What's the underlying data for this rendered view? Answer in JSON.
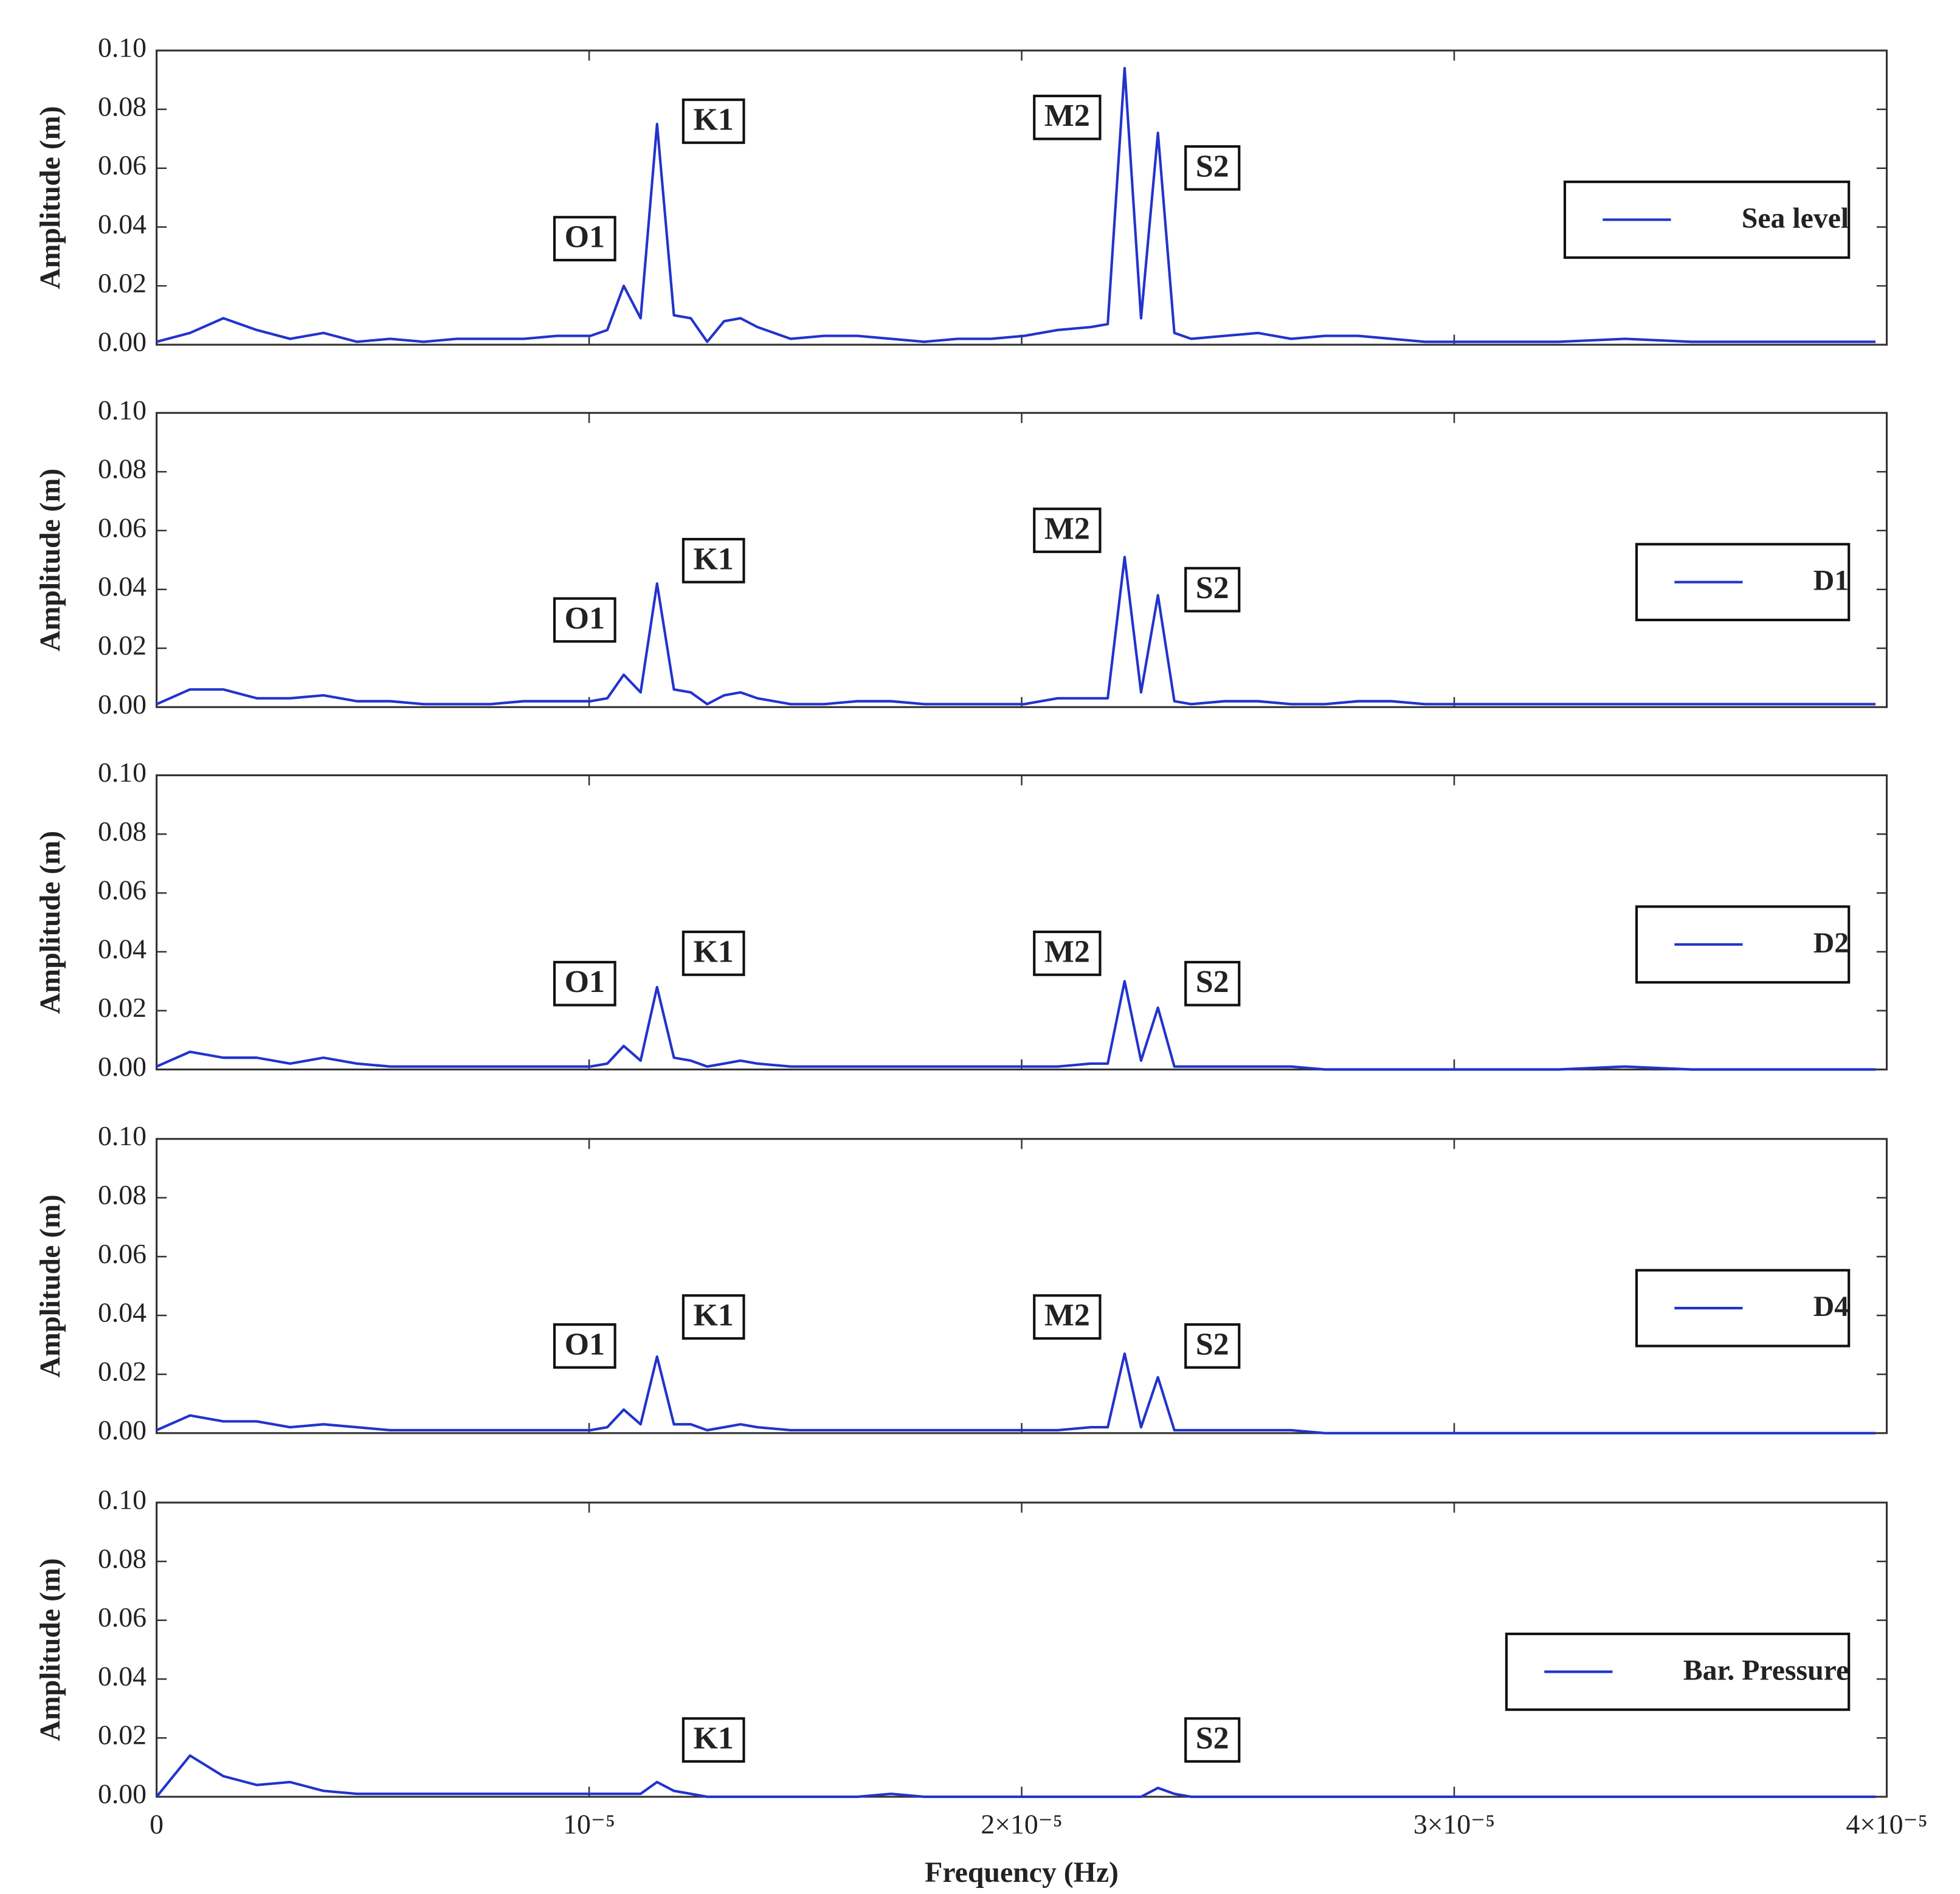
{
  "chart_data": [
    {
      "type": "line",
      "ylabel": "Amplitude (m)",
      "x": [
        0,
        7.72e-07,
        1.543e-06,
        2.315e-06,
        3.086e-06,
        3.858e-06,
        4.63e-06,
        5.401e-06,
        6.173e-06,
        6.944e-06,
        7.716e-06,
        8.488e-06,
        9.259e-06,
        1.003e-05,
        1.042e-05,
        1.08e-05,
        1.119e-05,
        1.157e-05,
        1.196e-05,
        1.235e-05,
        1.273e-05,
        1.312e-05,
        1.35e-05,
        1.389e-05,
        1.466e-05,
        1.543e-05,
        1.62e-05,
        1.698e-05,
        1.775e-05,
        1.852e-05,
        1.929e-05,
        2.006e-05,
        2.083e-05,
        2.16e-05,
        2.199e-05,
        2.238e-05,
        2.276e-05,
        2.315e-05,
        2.353e-05,
        2.392e-05,
        2.469e-05,
        2.546e-05,
        2.623e-05,
        2.701e-05,
        2.778e-05,
        2.855e-05,
        2.932e-05,
        3.009e-05,
        3.086e-05,
        3.241e-05,
        3.395e-05,
        3.549e-05,
        3.704e-05,
        3.858e-05,
        3.974e-05
      ],
      "series": [
        {
          "name": "Sea level",
          "color": "#2233cc",
          "values": [
            0.001,
            0.004,
            0.009,
            0.005,
            0.002,
            0.004,
            0.001,
            0.002,
            0.001,
            0.002,
            0.002,
            0.002,
            0.003,
            0.003,
            0.005,
            0.02,
            0.009,
            0.075,
            0.01,
            0.009,
            0.001,
            0.008,
            0.009,
            0.006,
            0.002,
            0.003,
            0.003,
            0.002,
            0.001,
            0.002,
            0.002,
            0.003,
            0.005,
            0.006,
            0.007,
            0.094,
            0.009,
            0.072,
            0.004,
            0.002,
            0.003,
            0.004,
            0.002,
            0.003,
            0.003,
            0.002,
            0.001,
            0.001,
            0.001,
            0.001,
            0.002,
            0.001,
            0.001,
            0.001,
            0.001
          ]
        }
      ],
      "annotations": [
        "O1",
        "K1",
        "M2",
        "S2"
      ],
      "xlim": [
        0,
        4e-05
      ],
      "ylim": [
        0,
        0.1
      ],
      "yticks": [
        {
          "value": 0,
          "label": "0.00"
        },
        {
          "value": 0.02,
          "label": "0.02"
        },
        {
          "value": 0.04,
          "label": "0.04"
        },
        {
          "value": 0.06,
          "label": "0.06"
        },
        {
          "value": 0.08,
          "label": "0.08"
        },
        {
          "value": 0.1,
          "label": "0.10"
        }
      ],
      "legend": "center right"
    },
    {
      "type": "line",
      "ylabel": "Amplitude (m)",
      "x": [
        0,
        7.72e-07,
        1.543e-06,
        2.315e-06,
        3.086e-06,
        3.858e-06,
        4.63e-06,
        5.401e-06,
        6.173e-06,
        6.944e-06,
        7.716e-06,
        8.488e-06,
        9.259e-06,
        1.003e-05,
        1.042e-05,
        1.08e-05,
        1.119e-05,
        1.157e-05,
        1.196e-05,
        1.235e-05,
        1.273e-05,
        1.312e-05,
        1.35e-05,
        1.389e-05,
        1.466e-05,
        1.543e-05,
        1.62e-05,
        1.698e-05,
        1.775e-05,
        1.852e-05,
        1.929e-05,
        2.006e-05,
        2.083e-05,
        2.16e-05,
        2.199e-05,
        2.238e-05,
        2.276e-05,
        2.315e-05,
        2.353e-05,
        2.392e-05,
        2.469e-05,
        2.546e-05,
        2.623e-05,
        2.701e-05,
        2.778e-05,
        2.855e-05,
        2.932e-05,
        3.009e-05,
        3.086e-05,
        3.241e-05,
        3.395e-05,
        3.549e-05,
        3.704e-05,
        3.858e-05,
        3.974e-05
      ],
      "series": [
        {
          "name": "D1",
          "color": "#2233cc",
          "values": [
            0.001,
            0.006,
            0.006,
            0.003,
            0.003,
            0.004,
            0.002,
            0.002,
            0.001,
            0.001,
            0.001,
            0.002,
            0.002,
            0.002,
            0.003,
            0.011,
            0.005,
            0.042,
            0.006,
            0.005,
            0.001,
            0.004,
            0.005,
            0.003,
            0.001,
            0.001,
            0.002,
            0.002,
            0.001,
            0.001,
            0.001,
            0.001,
            0.003,
            0.003,
            0.003,
            0.051,
            0.005,
            0.038,
            0.002,
            0.001,
            0.002,
            0.002,
            0.001,
            0.001,
            0.002,
            0.002,
            0.001,
            0.001,
            0.001,
            0.001,
            0.001,
            0.001,
            0.001,
            0.001,
            0.001
          ]
        }
      ],
      "annotations": [
        "O1",
        "K1",
        "M2",
        "S2"
      ],
      "xlim": [
        0,
        4e-05
      ],
      "ylim": [
        0,
        0.1
      ],
      "yticks": [
        {
          "value": 0,
          "label": "0.00"
        },
        {
          "value": 0.02,
          "label": "0.02"
        },
        {
          "value": 0.04,
          "label": "0.04"
        },
        {
          "value": 0.06,
          "label": "0.06"
        },
        {
          "value": 0.08,
          "label": "0.08"
        },
        {
          "value": 0.1,
          "label": "0.10"
        }
      ],
      "legend": "center right"
    },
    {
      "type": "line",
      "ylabel": "Amplitude (m)",
      "x": [
        0,
        7.72e-07,
        1.543e-06,
        2.315e-06,
        3.086e-06,
        3.858e-06,
        4.63e-06,
        5.401e-06,
        6.173e-06,
        6.944e-06,
        7.716e-06,
        8.488e-06,
        9.259e-06,
        1.003e-05,
        1.042e-05,
        1.08e-05,
        1.119e-05,
        1.157e-05,
        1.196e-05,
        1.235e-05,
        1.273e-05,
        1.312e-05,
        1.35e-05,
        1.389e-05,
        1.466e-05,
        1.543e-05,
        1.62e-05,
        1.698e-05,
        1.775e-05,
        1.852e-05,
        1.929e-05,
        2.006e-05,
        2.083e-05,
        2.16e-05,
        2.199e-05,
        2.238e-05,
        2.276e-05,
        2.315e-05,
        2.353e-05,
        2.392e-05,
        2.469e-05,
        2.546e-05,
        2.623e-05,
        2.701e-05,
        2.778e-05,
        2.855e-05,
        2.932e-05,
        3.009e-05,
        3.086e-05,
        3.241e-05,
        3.395e-05,
        3.549e-05,
        3.704e-05,
        3.858e-05,
        3.974e-05
      ],
      "series": [
        {
          "name": "D2",
          "color": "#2233cc",
          "values": [
            0.001,
            0.006,
            0.004,
            0.004,
            0.002,
            0.004,
            0.002,
            0.001,
            0.001,
            0.001,
            0.001,
            0.001,
            0.001,
            0.001,
            0.002,
            0.008,
            0.003,
            0.028,
            0.004,
            0.003,
            0.001,
            0.002,
            0.003,
            0.002,
            0.001,
            0.001,
            0.001,
            0.001,
            0.001,
            0.001,
            0.001,
            0.001,
            0.001,
            0.002,
            0.002,
            0.03,
            0.003,
            0.021,
            0.001,
            0.001,
            0.001,
            0.001,
            0.001,
            0,
            0,
            0,
            0,
            0,
            0,
            0,
            0.001,
            0,
            0,
            0,
            0
          ]
        }
      ],
      "annotations": [
        "O1",
        "K1",
        "M2",
        "S2"
      ],
      "xlim": [
        0,
        4e-05
      ],
      "ylim": [
        0,
        0.1
      ],
      "yticks": [
        {
          "value": 0,
          "label": "0.00"
        },
        {
          "value": 0.02,
          "label": "0.02"
        },
        {
          "value": 0.04,
          "label": "0.04"
        },
        {
          "value": 0.06,
          "label": "0.06"
        },
        {
          "value": 0.08,
          "label": "0.08"
        },
        {
          "value": 0.1,
          "label": "0.10"
        }
      ],
      "legend": "center right"
    },
    {
      "type": "line",
      "ylabel": "Amplitude (m)",
      "x": [
        0,
        7.72e-07,
        1.543e-06,
        2.315e-06,
        3.086e-06,
        3.858e-06,
        4.63e-06,
        5.401e-06,
        6.173e-06,
        6.944e-06,
        7.716e-06,
        8.488e-06,
        9.259e-06,
        1.003e-05,
        1.042e-05,
        1.08e-05,
        1.119e-05,
        1.157e-05,
        1.196e-05,
        1.235e-05,
        1.273e-05,
        1.312e-05,
        1.35e-05,
        1.389e-05,
        1.466e-05,
        1.543e-05,
        1.62e-05,
        1.698e-05,
        1.775e-05,
        1.852e-05,
        1.929e-05,
        2.006e-05,
        2.083e-05,
        2.16e-05,
        2.199e-05,
        2.238e-05,
        2.276e-05,
        2.315e-05,
        2.353e-05,
        2.392e-05,
        2.469e-05,
        2.546e-05,
        2.623e-05,
        2.701e-05,
        2.778e-05,
        2.855e-05,
        2.932e-05,
        3.009e-05,
        3.086e-05,
        3.241e-05,
        3.395e-05,
        3.549e-05,
        3.704e-05,
        3.858e-05,
        3.974e-05
      ],
      "series": [
        {
          "name": "D4",
          "color": "#2233cc",
          "values": [
            0.001,
            0.006,
            0.004,
            0.004,
            0.002,
            0.003,
            0.002,
            0.001,
            0.001,
            0.001,
            0.001,
            0.001,
            0.001,
            0.001,
            0.002,
            0.008,
            0.003,
            0.026,
            0.003,
            0.003,
            0.001,
            0.002,
            0.003,
            0.002,
            0.001,
            0.001,
            0.001,
            0.001,
            0.001,
            0.001,
            0.001,
            0.001,
            0.001,
            0.002,
            0.002,
            0.027,
            0.002,
            0.019,
            0.001,
            0.001,
            0.001,
            0.001,
            0.001,
            0,
            0,
            0,
            0,
            0,
            0,
            0,
            0,
            0,
            0,
            0,
            0
          ]
        }
      ],
      "annotations": [
        "O1",
        "K1",
        "M2",
        "S2"
      ],
      "xlim": [
        0,
        4e-05
      ],
      "ylim": [
        0,
        0.1
      ],
      "yticks": [
        {
          "value": 0,
          "label": "0.00"
        },
        {
          "value": 0.02,
          "label": "0.02"
        },
        {
          "value": 0.04,
          "label": "0.04"
        },
        {
          "value": 0.06,
          "label": "0.06"
        },
        {
          "value": 0.08,
          "label": "0.08"
        },
        {
          "value": 0.1,
          "label": "0.10"
        }
      ],
      "legend": "center right"
    },
    {
      "type": "line",
      "ylabel": "Amplitude (m)",
      "xlabel": "Frequency (Hz)",
      "x": [
        0,
        7.72e-07,
        1.543e-06,
        2.315e-06,
        3.086e-06,
        3.858e-06,
        4.63e-06,
        5.401e-06,
        6.173e-06,
        6.944e-06,
        7.716e-06,
        8.488e-06,
        9.259e-06,
        1.003e-05,
        1.042e-05,
        1.08e-05,
        1.119e-05,
        1.157e-05,
        1.196e-05,
        1.235e-05,
        1.273e-05,
        1.312e-05,
        1.35e-05,
        1.389e-05,
        1.466e-05,
        1.543e-05,
        1.62e-05,
        1.698e-05,
        1.775e-05,
        1.852e-05,
        1.929e-05,
        2.006e-05,
        2.083e-05,
        2.16e-05,
        2.199e-05,
        2.238e-05,
        2.276e-05,
        2.315e-05,
        2.353e-05,
        2.392e-05,
        2.469e-05,
        2.546e-05,
        2.623e-05,
        2.701e-05,
        2.778e-05,
        2.855e-05,
        2.932e-05,
        3.009e-05,
        3.086e-05,
        3.241e-05,
        3.395e-05,
        3.549e-05,
        3.704e-05,
        3.858e-05,
        3.974e-05
      ],
      "series": [
        {
          "name": "Bar. Pressure",
          "color": "#2233cc",
          "values": [
            0,
            0.014,
            0.007,
            0.004,
            0.005,
            0.002,
            0.001,
            0.001,
            0.001,
            0.001,
            0.001,
            0.001,
            0.001,
            0.001,
            0.001,
            0.001,
            0.001,
            0.005,
            0.002,
            0.001,
            0,
            0,
            0,
            0,
            0,
            0,
            0,
            0.001,
            0,
            0,
            0,
            0,
            0,
            0,
            0,
            0,
            0,
            0.003,
            0.001,
            0,
            0,
            0,
            0,
            0,
            0,
            0,
            0,
            0,
            0,
            0,
            0,
            0,
            0,
            0,
            0
          ]
        }
      ],
      "annotations": [
        "K1",
        "S2"
      ],
      "xlim": [
        0,
        4e-05
      ],
      "ylim": [
        0,
        0.1
      ],
      "xticks": [
        0,
        {
          "value": 1e-05,
          "label": "10⁻⁵"
        },
        {
          "value": 2e-05,
          "label": "2×10⁻⁵"
        },
        {
          "value": 3e-05,
          "label": "3×10⁻⁵"
        },
        {
          "value": 4e-05,
          "label": "4×10⁻⁵"
        }
      ],
      "yticks": [
        {
          "value": 0,
          "label": "0.00"
        },
        {
          "value": 0.02,
          "label": "0.02"
        },
        {
          "value": 0.04,
          "label": "0.04"
        },
        {
          "value": 0.06,
          "label": "0.06"
        },
        {
          "value": 0.08,
          "label": "0.08"
        },
        {
          "value": 0.1,
          "label": "0.10"
        }
      ],
      "legend": "center right"
    }
  ]
}
